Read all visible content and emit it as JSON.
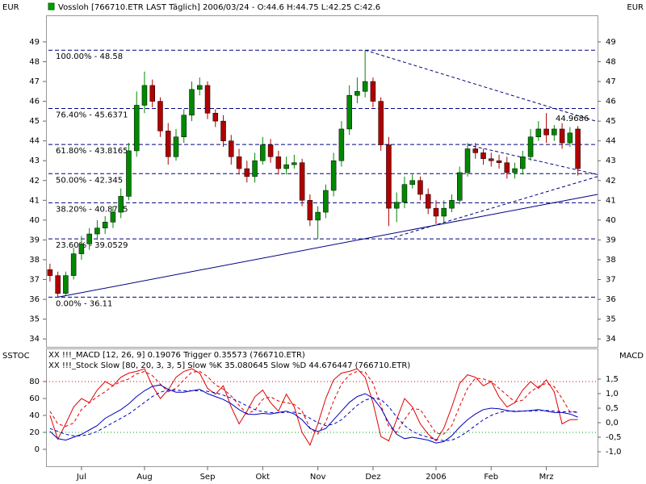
{
  "chart_data": [
    {
      "type": "candlestick",
      "title": "Vossloh [766710.ETR LAST Täglich] 2006/03/24 - O:44.6 H:44.75 L:42.25 C:42.6",
      "y_label_left": "EUR",
      "y_label_right": "EUR",
      "categories": [
        null,
        null,
        null,
        null,
        "Jul",
        null,
        null,
        null,
        null,
        null,
        null,
        null,
        "Aug",
        null,
        null,
        null,
        null,
        null,
        null,
        null,
        "Sep",
        null,
        null,
        null,
        null,
        null,
        null,
        "Okt",
        null,
        null,
        null,
        null,
        null,
        null,
        "Nov",
        null,
        null,
        null,
        null,
        null,
        null,
        "Dez",
        null,
        null,
        null,
        null,
        null,
        null,
        null,
        "2006",
        null,
        null,
        null,
        null,
        null,
        null,
        "Feb",
        null,
        null,
        null,
        null,
        null,
        null,
        "Mrz",
        null,
        null,
        null,
        null
      ],
      "open": [
        37.5,
        37.2,
        36.3,
        37.2,
        38.3,
        38.8,
        39.3,
        39.6,
        39.9,
        40.4,
        41.2,
        43.5,
        45.8,
        46.8,
        46.0,
        44.5,
        43.2,
        44.2,
        45.3,
        46.6,
        46.8,
        45.4,
        45.0,
        44.0,
        43.2,
        42.6,
        42.2,
        43.0,
        43.8,
        43.2,
        42.6,
        42.8,
        42.9,
        41.0,
        40.0,
        40.4,
        41.5,
        43.0,
        44.6,
        46.3,
        46.5,
        47.0,
        46.0,
        43.8,
        40.6,
        40.9,
        41.8,
        42.0,
        41.3,
        40.6,
        40.2,
        40.6,
        41.0,
        42.4,
        43.6,
        43.4,
        43.1,
        43.0,
        42.9,
        42.4,
        42.6,
        43.2,
        44.2,
        44.6,
        44.3,
        44.6,
        43.9,
        44.6
      ],
      "high": [
        37.8,
        37.4,
        37.4,
        38.6,
        39.2,
        39.6,
        40.0,
        40.2,
        40.7,
        41.6,
        43.9,
        46.5,
        47.5,
        47.1,
        46.2,
        44.9,
        44.6,
        45.6,
        47.0,
        47.2,
        47.0,
        45.6,
        45.3,
        44.3,
        43.6,
        43.0,
        43.4,
        44.2,
        44.1,
        43.5,
        43.2,
        43.3,
        43.1,
        41.3,
        40.7,
        41.8,
        43.4,
        45.0,
        46.8,
        47.2,
        48.58,
        47.2,
        46.2,
        44.2,
        41.4,
        42.2,
        42.3,
        42.2,
        41.6,
        41.0,
        41.0,
        41.3,
        42.7,
        43.9,
        43.9,
        43.6,
        43.4,
        43.3,
        43.2,
        42.9,
        43.5,
        44.6,
        45.0,
        45.4,
        44.8,
        44.9,
        44.7,
        44.75
      ],
      "low": [
        36.9,
        36.11,
        36.2,
        37.0,
        38.0,
        38.5,
        39.0,
        39.3,
        39.6,
        40.1,
        41.0,
        43.2,
        45.4,
        45.7,
        44.2,
        42.8,
        43.0,
        43.9,
        45.0,
        46.3,
        45.1,
        44.7,
        43.7,
        42.8,
        42.3,
        41.9,
        41.9,
        42.8,
        42.9,
        42.3,
        42.3,
        42.6,
        40.7,
        39.7,
        39.05,
        40.1,
        41.2,
        42.7,
        44.3,
        45.9,
        46.2,
        45.7,
        43.5,
        39.7,
        39.9,
        40.6,
        41.6,
        41.0,
        40.3,
        39.8,
        39.9,
        40.4,
        40.8,
        42.2,
        43.1,
        42.8,
        42.7,
        42.6,
        42.1,
        42.1,
        42.3,
        43.0,
        44.0,
        43.9,
        44.0,
        43.6,
        43.7,
        42.25
      ],
      "close": [
        37.2,
        36.3,
        37.2,
        38.3,
        38.8,
        39.3,
        39.6,
        39.9,
        40.4,
        41.2,
        43.5,
        45.8,
        46.8,
        46.0,
        44.5,
        43.2,
        44.2,
        45.3,
        46.6,
        46.8,
        45.4,
        45.0,
        44.0,
        43.2,
        42.6,
        42.2,
        43.0,
        43.8,
        43.2,
        42.6,
        42.8,
        42.9,
        41.0,
        40.0,
        40.4,
        41.5,
        43.0,
        44.6,
        46.3,
        46.5,
        47.0,
        46.0,
        43.8,
        40.6,
        40.9,
        41.8,
        42.0,
        41.3,
        40.6,
        40.2,
        40.6,
        41.0,
        42.4,
        43.6,
        43.4,
        43.1,
        43.0,
        42.9,
        42.4,
        42.6,
        43.2,
        44.2,
        44.6,
        44.3,
        44.6,
        43.9,
        44.4,
        42.6
      ],
      "up_color": "#008800",
      "down_color": "#b00000",
      "ylim": [
        33.6,
        50.3
      ],
      "yticks": [
        34,
        35,
        36,
        37,
        38,
        39,
        40,
        41,
        42,
        43,
        44,
        45,
        46,
        47,
        48,
        49
      ],
      "fib_color": "#000080",
      "fib_levels": [
        {
          "value": 48.58,
          "label": "100.00% - 48.58"
        },
        {
          "value": 45.6371,
          "label": "76.40% - 45.6371"
        },
        {
          "value": 43.8165,
          "label": "61.80% - 43.8165"
        },
        {
          "value": 42.345,
          "label": "50.00% - 42.345"
        },
        {
          "value": 40.8735,
          "label": "38.20% - 40.8735"
        },
        {
          "value": 39.0529,
          "label": "23.60% - 39.0529"
        },
        {
          "value": 36.11,
          "label": "0.00% - 36.11"
        }
      ],
      "trendlines": [
        {
          "x": [
            1,
            70
          ],
          "y": [
            36.11,
            41.3
          ],
          "dashed": false
        },
        {
          "x": [
            40,
            70
          ],
          "y": [
            48.58,
            44.9686
          ],
          "dashed": true
        },
        {
          "x": [
            53,
            70
          ],
          "y": [
            43.8,
            42.3
          ],
          "dashed": true
        },
        {
          "x": [
            43,
            70
          ],
          "y": [
            39.05,
            42.2
          ],
          "dashed": true
        }
      ],
      "annotation": 44.9686
    },
    {
      "type": "indicator",
      "y_label_left": "SSTOC",
      "y_label_right": "MACD",
      "legend": [
        {
          "label": "XX !!!_MACD [12, 26, 9] 0.19076 Trigger 0.35573 (766710.ETR)",
          "color": "#0000c0"
        },
        {
          "label": "XX !!!_Stock Slow [80, 20, 3, 3, 5] Slow %K 35.080645 Slow %D 44.676447 (766710.ETR)",
          "color": "#e00000"
        }
      ],
      "ylim": [
        -20,
        119
      ],
      "yticks": [
        0,
        20,
        40,
        60,
        80
      ],
      "y2lim": [
        -1.5,
        2.556
      ],
      "y2ticks": [
        {
          "value": -1.0,
          "label": "-1,0"
        },
        {
          "value": -0.5,
          "label": "-0,5"
        },
        {
          "value": 0.0,
          "label": "0,0"
        },
        {
          "value": 0.5,
          "label": "0,5"
        },
        {
          "value": 1.0,
          "label": "1,0"
        },
        {
          "value": 1.5,
          "label": "1,5"
        }
      ],
      "levels": [
        {
          "value": 80,
          "color": "#e00000"
        },
        {
          "value": 20,
          "color": "#00a000"
        }
      ],
      "series": [
        {
          "color": "#e00000",
          "dashed": false,
          "axis": "y",
          "values": [
            40,
            12,
            30,
            50,
            60,
            55,
            70,
            80,
            75,
            85,
            90,
            92,
            95,
            75,
            60,
            70,
            85,
            92,
            95,
            90,
            72,
            65,
            75,
            50,
            30,
            45,
            62,
            70,
            55,
            45,
            65,
            50,
            20,
            5,
            30,
            60,
            82,
            90,
            92,
            95,
            85,
            55,
            15,
            10,
            35,
            60,
            50,
            30,
            18,
            10,
            25,
            50,
            78,
            88,
            85,
            75,
            80,
            62,
            50,
            55,
            70,
            80,
            72,
            82,
            68,
            30,
            35,
            35.080645
          ]
        },
        {
          "color": "#e00000",
          "dashed": true,
          "axis": "y",
          "values": [
            45,
            30,
            27,
            31,
            47,
            55,
            62,
            68,
            75,
            80,
            83,
            89,
            92,
            87,
            77,
            68,
            72,
            82,
            91,
            92,
            86,
            76,
            71,
            63,
            52,
            42,
            46,
            59,
            62,
            57,
            55,
            53,
            45,
            25,
            18,
            32,
            57,
            77,
            88,
            92,
            91,
            78,
            52,
            27,
            20,
            35,
            48,
            47,
            33,
            19,
            18,
            28,
            51,
            72,
            84,
            83,
            80,
            72,
            64,
            56,
            58,
            68,
            74,
            78,
            74,
            60,
            44,
            44.676447
          ]
        },
        {
          "color": "#0000c0",
          "dashed": false,
          "axis": "y2",
          "values": [
            -0.3,
            -0.55,
            -0.6,
            -0.5,
            -0.4,
            -0.25,
            -0.1,
            0.15,
            0.3,
            0.45,
            0.65,
            0.9,
            1.1,
            1.25,
            1.3,
            1.15,
            1.05,
            1.05,
            1.1,
            1.15,
            1.0,
            0.9,
            0.8,
            0.65,
            0.45,
            0.3,
            0.28,
            0.32,
            0.3,
            0.35,
            0.4,
            0.3,
            0.1,
            -0.2,
            -0.3,
            -0.2,
            0.1,
            0.4,
            0.7,
            0.9,
            1.0,
            0.85,
            0.5,
            0.0,
            -0.4,
            -0.55,
            -0.5,
            -0.55,
            -0.6,
            -0.7,
            -0.65,
            -0.45,
            -0.15,
            0.1,
            0.3,
            0.45,
            0.5,
            0.48,
            0.42,
            0.38,
            0.4,
            0.42,
            0.45,
            0.4,
            0.35,
            0.35,
            0.3,
            0.19076
          ]
        },
        {
          "color": "#0000c0",
          "dashed": true,
          "axis": "y2",
          "values": [
            -0.2,
            -0.3,
            -0.4,
            -0.45,
            -0.45,
            -0.4,
            -0.3,
            -0.15,
            0.0,
            0.15,
            0.3,
            0.5,
            0.7,
            0.9,
            1.05,
            1.12,
            1.12,
            1.1,
            1.1,
            1.1,
            1.08,
            1.03,
            0.95,
            0.85,
            0.72,
            0.58,
            0.45,
            0.38,
            0.35,
            0.34,
            0.36,
            0.36,
            0.3,
            0.15,
            0.0,
            -0.1,
            -0.05,
            0.1,
            0.35,
            0.6,
            0.78,
            0.85,
            0.8,
            0.55,
            0.2,
            -0.1,
            -0.3,
            -0.42,
            -0.5,
            -0.58,
            -0.62,
            -0.6,
            -0.48,
            -0.3,
            -0.1,
            0.1,
            0.25,
            0.35,
            0.4,
            0.4,
            0.4,
            0.4,
            0.42,
            0.42,
            0.4,
            0.38,
            0.37,
            0.35573
          ]
        }
      ]
    }
  ]
}
